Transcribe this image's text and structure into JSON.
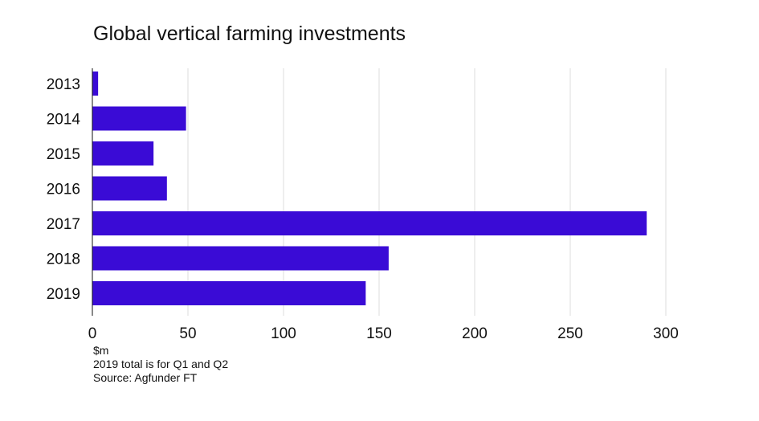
{
  "title": "Global vertical farming investments",
  "notes": {
    "unit": "$m",
    "footnote": "2019 total is for Q1 and Q2",
    "source": "Source: Agfunder FT"
  },
  "colors": {
    "bar": "#3a0bd6",
    "grid": "#dddddd",
    "axis": "#111111"
  },
  "chart_data": {
    "type": "bar",
    "orientation": "horizontal",
    "title": "Global vertical farming investments",
    "categories": [
      "2013",
      "2014",
      "2015",
      "2016",
      "2017",
      "2018",
      "2019"
    ],
    "values": [
      3,
      49,
      32,
      39,
      290,
      155,
      143
    ],
    "unit": "$m",
    "xlim": [
      0,
      300
    ],
    "xticks": [
      0,
      50,
      100,
      150,
      200,
      250,
      300
    ],
    "xtick_labels": [
      "0",
      "50",
      "100",
      "150",
      "200",
      "250",
      "300"
    ],
    "grid": true
  }
}
